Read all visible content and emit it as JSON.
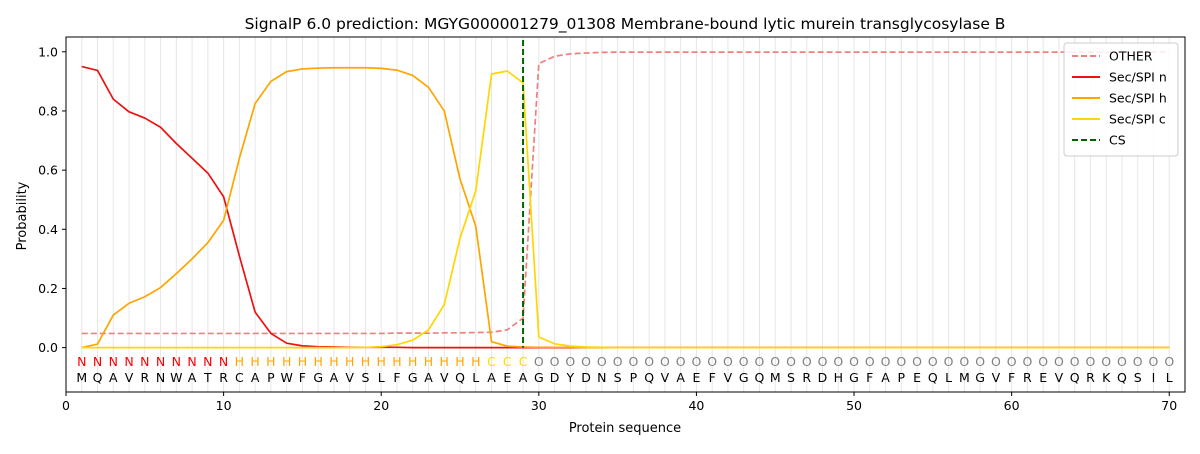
{
  "chart_data": {
    "type": "line",
    "title": "SignalP 6.0 prediction: MGYG000001279_01308 Membrane-bound lytic murein transglycosylase B",
    "xlabel": "Protein sequence",
    "ylabel": "Probability",
    "xlim": [
      0,
      71
    ],
    "ylim": [
      -0.15,
      1.05
    ],
    "x_ticks": [
      0,
      10,
      20,
      30,
      40,
      50,
      60,
      70
    ],
    "y_ticks": [
      0.0,
      0.2,
      0.4,
      0.6,
      0.8,
      1.0
    ],
    "legend_position": "top-right",
    "vertical_grid": true,
    "sequence": [
      "M",
      "Q",
      "A",
      "V",
      "R",
      "N",
      "W",
      "A",
      "T",
      "R",
      "C",
      "A",
      "P",
      "W",
      "F",
      "G",
      "A",
      "V",
      "S",
      "L",
      "F",
      "G",
      "A",
      "V",
      "Q",
      "L",
      "A",
      "E",
      "A",
      "G",
      "D",
      "Y",
      "D",
      "N",
      "S",
      "P",
      "Q",
      "V",
      "A",
      "E",
      "F",
      "V",
      "G",
      "Q",
      "M",
      "S",
      "R",
      "D",
      "H",
      "G",
      "F",
      "A",
      "P",
      "E",
      "Q",
      "L",
      "M",
      "G",
      "V",
      "F",
      "R",
      "E",
      "V",
      "Q",
      "R",
      "K",
      "Q",
      "S",
      "I",
      "L"
    ],
    "region_labels": [
      "N",
      "N",
      "N",
      "N",
      "N",
      "N",
      "N",
      "N",
      "N",
      "N",
      "H",
      "H",
      "H",
      "H",
      "H",
      "H",
      "H",
      "H",
      "H",
      "H",
      "H",
      "H",
      "H",
      "H",
      "H",
      "H",
      "C",
      "C",
      "C",
      "O",
      "O",
      "O",
      "O",
      "O",
      "O",
      "O",
      "O",
      "O",
      "O",
      "O",
      "O",
      "O",
      "O",
      "O",
      "O",
      "O",
      "O",
      "O",
      "O",
      "O",
      "O",
      "O",
      "O",
      "O",
      "O",
      "O",
      "O",
      "O",
      "O",
      "O",
      "O",
      "O",
      "O",
      "O",
      "O",
      "O",
      "O",
      "O",
      "O",
      "O"
    ],
    "region_colors": {
      "N": "#ff0000",
      "H": "#ffa500",
      "C": "#ffd700",
      "O": "#808080"
    },
    "series": [
      {
        "name": "OTHER",
        "color": "#f08080",
        "dashed": true,
        "values": [
          0.048,
          0.048,
          0.048,
          0.048,
          0.048,
          0.048,
          0.048,
          0.048,
          0.048,
          0.048,
          0.048,
          0.048,
          0.048,
          0.048,
          0.048,
          0.048,
          0.048,
          0.048,
          0.048,
          0.048,
          0.049,
          0.049,
          0.049,
          0.05,
          0.05,
          0.051,
          0.052,
          0.06,
          0.1,
          0.96,
          0.985,
          0.993,
          0.996,
          0.998,
          0.999,
          0.999,
          0.999,
          0.999,
          0.999,
          0.999,
          0.999,
          0.999,
          0.999,
          0.999,
          0.999,
          0.999,
          0.999,
          0.999,
          0.999,
          0.999,
          0.999,
          0.999,
          0.999,
          0.999,
          0.999,
          0.999,
          0.999,
          0.999,
          0.999,
          0.999,
          0.999,
          0.999,
          0.999,
          0.999,
          0.999,
          0.999,
          0.999,
          0.999,
          0.999,
          0.999
        ]
      },
      {
        "name": "Sec/SPI n",
        "color": "#ee1111",
        "dashed": false,
        "values": [
          0.95,
          0.937,
          0.84,
          0.797,
          0.776,
          0.745,
          0.69,
          0.64,
          0.59,
          0.51,
          0.31,
          0.12,
          0.048,
          0.015,
          0.006,
          0.003,
          0.002,
          0.001,
          0.001,
          0.001,
          0.001,
          0.0,
          0.0,
          0.0,
          0.0,
          0.0,
          0.0,
          0.0,
          0.0,
          0.0,
          0.0,
          0.0,
          0.0,
          0.0,
          0.0,
          0.0,
          0.0,
          0.0,
          0.0,
          0.0,
          0.0,
          0.0,
          0.0,
          0.0,
          0.0,
          0.0,
          0.0,
          0.0,
          0.0,
          0.0,
          0.0,
          0.0,
          0.0,
          0.0,
          0.0,
          0.0,
          0.0,
          0.0,
          0.0,
          0.0,
          0.0,
          0.0,
          0.0,
          0.0,
          0.0,
          0.0,
          0.0,
          0.0,
          0.0,
          0.0
        ]
      },
      {
        "name": "Sec/SPI h",
        "color": "#ffa500",
        "dashed": false,
        "values": [
          0.0,
          0.012,
          0.11,
          0.15,
          0.172,
          0.203,
          0.25,
          0.3,
          0.355,
          0.43,
          0.64,
          0.825,
          0.9,
          0.933,
          0.942,
          0.945,
          0.946,
          0.946,
          0.946,
          0.944,
          0.938,
          0.92,
          0.88,
          0.8,
          0.57,
          0.41,
          0.02,
          0.005,
          0.002,
          0.001,
          0.001,
          0.001,
          0.0,
          0.0,
          0.0,
          0.0,
          0.0,
          0.0,
          0.0,
          0.0,
          0.0,
          0.0,
          0.0,
          0.0,
          0.0,
          0.0,
          0.0,
          0.0,
          0.0,
          0.0,
          0.0,
          0.0,
          0.0,
          0.0,
          0.0,
          0.0,
          0.0,
          0.0,
          0.0,
          0.0,
          0.0,
          0.0,
          0.0,
          0.0,
          0.0,
          0.0,
          0.0,
          0.0,
          0.0,
          0.0
        ]
      },
      {
        "name": "Sec/SPI c",
        "color": "#ffd700",
        "dashed": false,
        "values": [
          0.0,
          0.0,
          0.0,
          0.0,
          0.0,
          0.0,
          0.0,
          0.0,
          0.0,
          0.0,
          0.0,
          0.0,
          0.0,
          0.0,
          0.0,
          0.0,
          0.0,
          0.0,
          0.001,
          0.003,
          0.01,
          0.025,
          0.06,
          0.145,
          0.37,
          0.53,
          0.925,
          0.935,
          0.895,
          0.036,
          0.013,
          0.005,
          0.002,
          0.001,
          0.0,
          0.0,
          0.0,
          0.0,
          0.0,
          0.0,
          0.0,
          0.0,
          0.0,
          0.0,
          0.0,
          0.0,
          0.0,
          0.0,
          0.0,
          0.0,
          0.0,
          0.0,
          0.0,
          0.0,
          0.0,
          0.0,
          0.0,
          0.0,
          0.0,
          0.0,
          0.0,
          0.0,
          0.0,
          0.0,
          0.0,
          0.0,
          0.0,
          0.0,
          0.0,
          0.0
        ]
      }
    ],
    "cleavage_site": {
      "name": "CS",
      "x": 29,
      "color": "#006400"
    }
  }
}
